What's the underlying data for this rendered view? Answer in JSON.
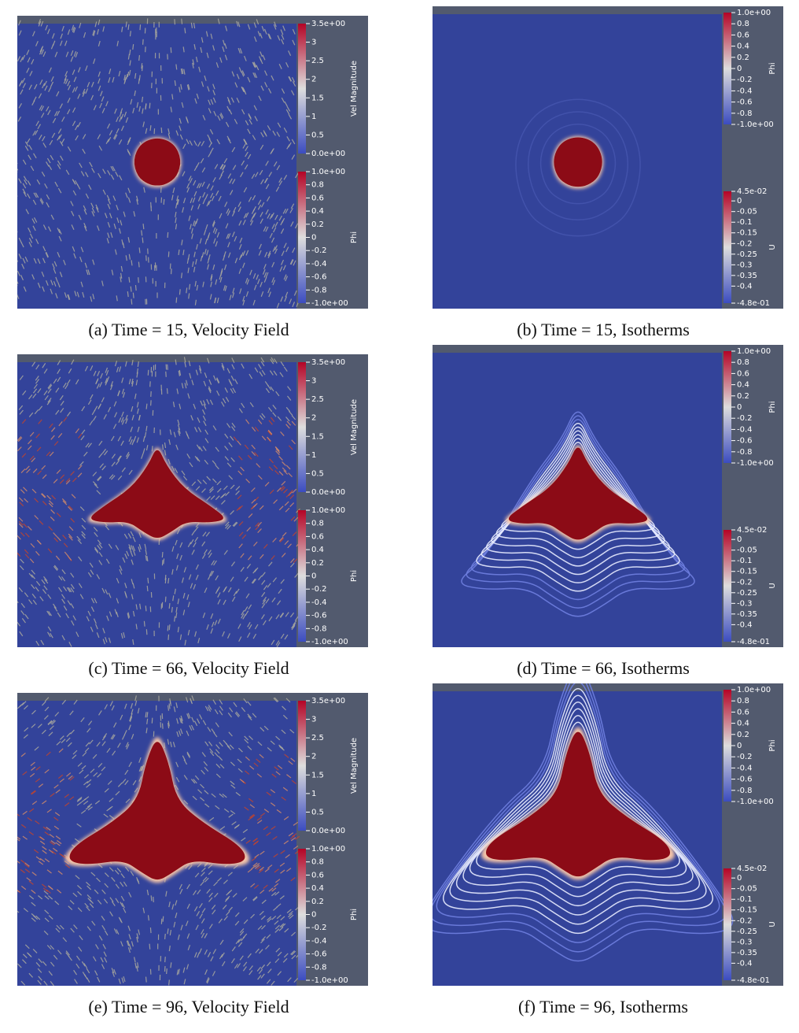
{
  "panels": [
    {
      "caption": "(a) Time = 15, Velocity Field",
      "colorbars": [
        {
          "title": "Vel Magnitude",
          "ticks": [
            "3.5e+00",
            "3",
            "2.5",
            "2",
            "1.5",
            "1",
            "0.5",
            "0.0e+00"
          ]
        },
        {
          "title": "Phi",
          "ticks": [
            "1.0e+00",
            "0.8",
            "0.6",
            "0.4",
            "0.2",
            "0",
            "-0.2",
            "-0.4",
            "-0.6",
            "-0.8",
            "-1.0e+00"
          ]
        }
      ]
    },
    {
      "caption": "(b) Time = 15, Isotherms",
      "colorbars": [
        {
          "title": "Phi",
          "ticks": [
            "1.0e+00",
            "0.8",
            "0.6",
            "0.4",
            "0.2",
            "0",
            "-0.2",
            "-0.4",
            "-0.6",
            "-0.8",
            "-1.0e+00"
          ]
        },
        {
          "title": "U",
          "ticks": [
            "4.5e-02",
            "0",
            "-0.05",
            "-0.1",
            "-0.15",
            "-0.2",
            "-0.25",
            "-0.3",
            "-0.35",
            "-0.4",
            "-4.8e-01"
          ]
        }
      ]
    },
    {
      "caption": "(c) Time = 66, Velocity Field",
      "colorbars": [
        {
          "title": "Vel Magnitude",
          "ticks": [
            "3.5e+00",
            "3",
            "2.5",
            "2",
            "1.5",
            "1",
            "0.5",
            "0.0e+00"
          ]
        },
        {
          "title": "Phi",
          "ticks": [
            "1.0e+00",
            "0.8",
            "0.6",
            "0.4",
            "0.2",
            "0",
            "-0.2",
            "-0.4",
            "-0.6",
            "-0.8",
            "-1.0e+00"
          ]
        }
      ]
    },
    {
      "caption": "(d) Time = 66, Isotherms",
      "colorbars": [
        {
          "title": "Phi",
          "ticks": [
            "1.0e+00",
            "0.8",
            "0.6",
            "0.4",
            "0.2",
            "0",
            "-0.2",
            "-0.4",
            "-0.6",
            "-0.8",
            "-1.0e+00"
          ]
        },
        {
          "title": "U",
          "ticks": [
            "4.5e-02",
            "0",
            "-0.05",
            "-0.1",
            "-0.15",
            "-0.2",
            "-0.25",
            "-0.3",
            "-0.35",
            "-0.4",
            "-4.8e-01"
          ]
        }
      ]
    },
    {
      "caption": "(e) Time = 96, Velocity Field",
      "colorbars": [
        {
          "title": "Vel Magnitude",
          "ticks": [
            "3.5e+00",
            "3",
            "2.5",
            "2",
            "1.5",
            "1",
            "0.5",
            "0.0e+00"
          ]
        },
        {
          "title": "Phi",
          "ticks": [
            "1.0e+00",
            "0.8",
            "0.6",
            "0.4",
            "0.2",
            "0",
            "-0.2",
            "-0.4",
            "-0.6",
            "-0.8",
            "-1.0e+00"
          ]
        }
      ]
    },
    {
      "caption": "(f) Time = 96, Isotherms",
      "colorbars": [
        {
          "title": "Phi",
          "ticks": [
            "1.0e+00",
            "0.8",
            "0.6",
            "0.4",
            "0.2",
            "0",
            "-0.2",
            "-0.4",
            "-0.6",
            "-0.8",
            "-1.0e+00"
          ]
        },
        {
          "title": "U",
          "ticks": [
            "4.5e-02",
            "0",
            "-0.05",
            "-0.1",
            "-0.15",
            "-0.2",
            "-0.25",
            "-0.3",
            "-0.35",
            "-0.4",
            "-4.8e-01"
          ]
        }
      ]
    }
  ]
}
